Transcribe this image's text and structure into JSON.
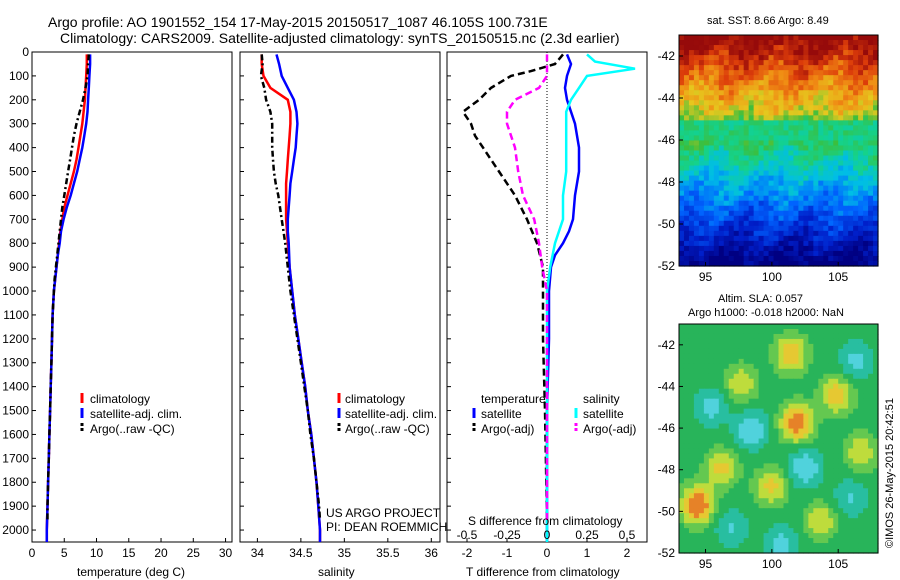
{
  "title": {
    "line1": "Argo profile: AO 1901552_154 17-May-2015 20150517_1087 46.105S 100.731E",
    "line2": "Climatology: CARS2009. Satellite-adjusted climatology: synTS_20150515.nc (2.3d earlier)"
  },
  "colors": {
    "climatology": "#ff0000",
    "satellite": "#0000ff",
    "argo": "#000000",
    "salinity_satellite": "#00ffff",
    "salinity_argo": "#ff00ff"
  },
  "chart_data": [
    {
      "id": "temperature",
      "type": "line",
      "xlabel": "temperature (deg C)",
      "xlim": [
        0,
        31
      ],
      "xticks": [
        "0",
        "5",
        "10",
        "15",
        "20",
        "25",
        "30"
      ],
      "ylim": [
        0,
        2050
      ],
      "yticks": [
        "0",
        "100",
        "200",
        "300",
        "400",
        "500",
        "600",
        "700",
        "800",
        "900",
        "1000",
        "1100",
        "1200",
        "1300",
        "1400",
        "1500",
        "1600",
        "1700",
        "1800",
        "1900",
        "2000"
      ],
      "legend": [
        "climatology",
        "satellite-adj. clim.",
        "Argo(..raw -QC)"
      ],
      "series": [
        {
          "name": "climatology",
          "depth": [
            10,
            50,
            100,
            150,
            200,
            250,
            300,
            350,
            400,
            450,
            500,
            550,
            600,
            650,
            700,
            750,
            800,
            850,
            900,
            950,
            1000,
            1100,
            1200,
            1300,
            1400,
            1500,
            1600,
            1700,
            1800,
            1900,
            2000,
            2050
          ],
          "values": [
            8.5,
            8.5,
            8.4,
            8.3,
            8.2,
            8.0,
            7.8,
            7.5,
            7.2,
            6.9,
            6.5,
            6.0,
            5.5,
            5.0,
            4.7,
            4.4,
            4.2,
            4.0,
            3.8,
            3.6,
            3.4,
            3.2,
            3.1,
            3.0,
            2.9,
            2.8,
            2.7,
            2.6,
            2.5,
            2.4,
            2.3,
            2.3
          ]
        },
        {
          "name": "satellite-adj. clim.",
          "depth": [
            10,
            50,
            100,
            150,
            200,
            250,
            300,
            350,
            400,
            450,
            500,
            550,
            600,
            650,
            700,
            750,
            800,
            850,
            900,
            950,
            1000,
            1100,
            1200,
            1300,
            1400,
            1500,
            1600,
            1700,
            1800,
            1900,
            2000,
            2050
          ],
          "values": [
            9.0,
            9.0,
            8.9,
            8.8,
            8.7,
            8.6,
            8.4,
            8.1,
            7.8,
            7.4,
            7.0,
            6.5,
            6.0,
            5.4,
            4.9,
            4.5,
            4.3,
            4.0,
            3.8,
            3.6,
            3.4,
            3.2,
            3.1,
            3.0,
            2.9,
            2.8,
            2.7,
            2.6,
            2.5,
            2.4,
            2.3,
            2.3
          ]
        },
        {
          "name": "Argo(..raw -QC)",
          "depth": [
            10,
            50,
            100,
            150,
            200,
            250,
            300,
            350,
            400,
            450,
            500,
            550,
            600,
            650,
            700,
            750,
            800,
            850,
            900,
            950,
            1000,
            1100,
            1200,
            1300,
            1400,
            1500,
            1600,
            1700,
            1800,
            1900,
            1960
          ],
          "values": [
            8.8,
            8.7,
            8.6,
            8.3,
            7.9,
            7.4,
            6.9,
            6.5,
            6.2,
            5.9,
            5.6,
            5.3,
            5.0,
            4.7,
            4.5,
            4.3,
            4.1,
            3.9,
            3.7,
            3.5,
            3.4,
            3.2,
            3.1,
            3.0,
            2.9,
            2.8,
            2.7,
            2.6,
            2.5,
            2.4,
            2.4
          ]
        }
      ]
    },
    {
      "id": "salinity",
      "type": "line",
      "xlabel": "salinity",
      "xlim": [
        33.8,
        36.1
      ],
      "xticks": [
        "34",
        "34.5",
        "35",
        "35.5",
        "36"
      ],
      "ylim": [
        0,
        2050
      ],
      "legend": [
        "climatology",
        "satellite-adj. clim.",
        "Argo(..raw -QC)"
      ],
      "annotation": [
        "US ARGO PROJECT",
        "PI: DEAN ROEMMICH"
      ],
      "series": [
        {
          "name": "climatology",
          "depth": [
            10,
            50,
            100,
            150,
            200,
            250,
            300,
            350,
            400,
            450,
            500,
            550,
            600,
            650,
            700,
            750,
            800,
            900,
            1000,
            1100,
            1200,
            1300,
            1400,
            1500,
            1600,
            1700,
            1800,
            1900,
            2000,
            2050
          ],
          "values": [
            34.05,
            34.05,
            34.07,
            34.15,
            34.35,
            34.38,
            34.38,
            34.37,
            34.36,
            34.35,
            34.34,
            34.33,
            34.33,
            34.33,
            34.33,
            34.34,
            34.35,
            34.37,
            34.4,
            34.43,
            34.47,
            34.51,
            34.55,
            34.58,
            34.62,
            34.65,
            34.68,
            34.7,
            34.72,
            34.72
          ]
        },
        {
          "name": "satellite-adj. clim.",
          "depth": [
            10,
            50,
            100,
            150,
            200,
            250,
            300,
            350,
            400,
            450,
            500,
            550,
            600,
            650,
            700,
            750,
            800,
            900,
            1000,
            1100,
            1200,
            1300,
            1400,
            1500,
            1600,
            1700,
            1800,
            1900,
            2000,
            2050
          ],
          "values": [
            34.22,
            34.25,
            34.28,
            34.35,
            34.42,
            34.45,
            34.46,
            34.45,
            34.44,
            34.42,
            34.4,
            34.38,
            34.37,
            34.36,
            34.35,
            34.35,
            34.36,
            34.37,
            34.4,
            34.43,
            34.47,
            34.51,
            34.55,
            34.58,
            34.62,
            34.65,
            34.68,
            34.7,
            34.72,
            34.72
          ]
        },
        {
          "name": "Argo(..raw -QC)",
          "depth": [
            10,
            50,
            100,
            150,
            200,
            250,
            300,
            350,
            400,
            450,
            500,
            550,
            600,
            650,
            700,
            750,
            800,
            900,
            1000,
            1100,
            1200,
            1300,
            1400,
            1500,
            1600,
            1700,
            1800,
            1900,
            1960
          ],
          "values": [
            34.05,
            34.06,
            34.04,
            34.08,
            34.1,
            34.15,
            34.17,
            34.17,
            34.17,
            34.18,
            34.19,
            34.21,
            34.24,
            34.26,
            34.28,
            34.3,
            34.32,
            34.35,
            34.38,
            34.42,
            34.46,
            34.5,
            34.54,
            34.58,
            34.61,
            34.65,
            34.68,
            34.71,
            34.72
          ]
        }
      ]
    },
    {
      "id": "difference",
      "type": "line",
      "xlabel": "T difference from climatology",
      "xlabel_top": "S difference from climatology",
      "xlim": [
        -2.5,
        2.5
      ],
      "xticks": [
        "-2",
        "-1",
        "0",
        "1",
        "2"
      ],
      "xticks_top": [
        "-0.5",
        "-0.25",
        "0",
        "0.25",
        "0.5"
      ],
      "ylim": [
        0,
        2050
      ],
      "legend_temperature": {
        "header": "temperature",
        "items": [
          "satellite",
          "Argo(-adj)"
        ]
      },
      "legend_salinity": {
        "header": "salinity",
        "items": [
          "satellite",
          "Argo(-adj)"
        ]
      },
      "series": [
        {
          "name": "temperature satellite",
          "depth": [
            10,
            50,
            100,
            150,
            200,
            300,
            400,
            500,
            600,
            700,
            750,
            800,
            850,
            900,
            1000,
            1200,
            1500,
            2000,
            2050
          ],
          "values": [
            0.5,
            0.6,
            0.5,
            0.45,
            0.5,
            0.7,
            0.8,
            0.8,
            0.7,
            0.65,
            0.55,
            0.4,
            0.2,
            0.1,
            0.05,
            0.05,
            0.0,
            0.0,
            0.0
          ]
        },
        {
          "name": "temperature Argo(-adj)",
          "depth": [
            10,
            50,
            80,
            100,
            150,
            200,
            250,
            300,
            350,
            400,
            450,
            500,
            600,
            700,
            800,
            900,
            1000,
            1200,
            1500,
            1960
          ],
          "values": [
            0.4,
            0.2,
            -0.4,
            -0.9,
            -1.4,
            -1.7,
            -2.1,
            -1.9,
            -1.8,
            -1.6,
            -1.4,
            -1.2,
            -0.8,
            -0.5,
            -0.25,
            -0.1,
            -0.1,
            -0.1,
            -0.05,
            0.0
          ]
        },
        {
          "name": "salinity satellite",
          "depth": [
            10,
            40,
            70,
            100,
            150,
            200,
            250,
            300,
            400,
            500,
            600,
            700,
            800,
            900,
            1000,
            1500,
            2000,
            2050
          ],
          "values": [
            0.25,
            0.3,
            0.55,
            0.25,
            0.2,
            0.15,
            0.12,
            0.12,
            0.12,
            0.12,
            0.1,
            0.1,
            0.05,
            0.02,
            0.0,
            0.0,
            0.0,
            0.0
          ]
        },
        {
          "name": "salinity Argo(-adj)",
          "depth": [
            10,
            50,
            100,
            150,
            200,
            250,
            300,
            400,
            500,
            600,
            700,
            800,
            900,
            1000,
            1500,
            1960
          ],
          "values": [
            0.0,
            0.0,
            0.0,
            -0.05,
            -0.2,
            -0.25,
            -0.25,
            -0.2,
            -0.18,
            -0.15,
            -0.08,
            -0.05,
            -0.03,
            0.0,
            0.0,
            0.0
          ]
        }
      ]
    },
    {
      "id": "sst-map",
      "type": "heatmap",
      "title": "sat. SST: 8.66 Argo: 8.49",
      "xticks": [
        "95",
        "100",
        "105"
      ],
      "yticks": [
        "-42",
        "-44",
        "-46",
        "-48",
        "-50",
        "-52"
      ]
    },
    {
      "id": "sla-map",
      "type": "heatmap",
      "title_lines": [
        "Altim. SLA: 0.057",
        "Argo h1000: -0.018 h2000: NaN"
      ],
      "xticks": [
        "95",
        "100",
        "105"
      ],
      "yticks": [
        "-42",
        "-44",
        "-46",
        "-48",
        "-50",
        "-52"
      ]
    }
  ],
  "credit": "©IMOS 26-May-2015 20:42:51"
}
